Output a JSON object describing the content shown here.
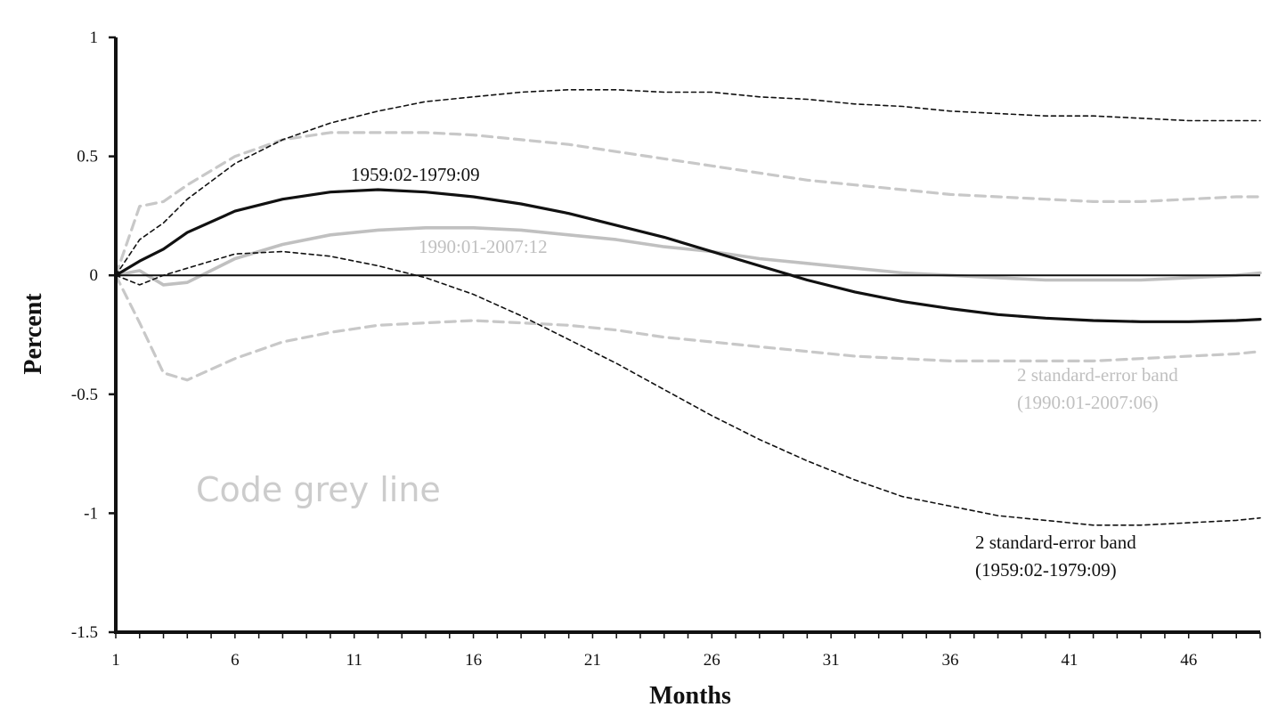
{
  "chart_data": {
    "type": "line",
    "title": "",
    "xlabel": "Months",
    "ylabel": "Percent",
    "xlim": [
      1,
      49
    ],
    "ylim": [
      -1.5,
      1
    ],
    "x_ticks": [
      1,
      6,
      11,
      16,
      21,
      26,
      31,
      36,
      41,
      46
    ],
    "y_ticks": [
      1,
      0.5,
      0,
      -0.5,
      -1,
      -1.5
    ],
    "y_tick_labels": [
      "1",
      "0.5",
      "0",
      "-0.5",
      "-1",
      "-1.5"
    ],
    "grid": false,
    "zero_line": true,
    "series": [
      {
        "name": "1959:02-1979:09",
        "style": "solid-black-thick",
        "color": "#111111",
        "x": [
          1,
          2,
          3,
          4,
          6,
          8,
          10,
          12,
          14,
          16,
          18,
          20,
          22,
          24,
          26,
          28,
          30,
          32,
          34,
          36,
          38,
          40,
          42,
          44,
          46,
          48,
          49
        ],
        "y": [
          0,
          0.06,
          0.11,
          0.18,
          0.27,
          0.32,
          0.35,
          0.36,
          0.35,
          0.33,
          0.3,
          0.26,
          0.21,
          0.16,
          0.1,
          0.04,
          -0.02,
          -0.07,
          -0.11,
          -0.14,
          -0.165,
          -0.18,
          -0.19,
          -0.195,
          -0.195,
          -0.19,
          -0.185
        ]
      },
      {
        "name": "1990:01-2007:12",
        "style": "solid-grey-thick",
        "color": "#c0c0c0",
        "x": [
          1,
          2,
          3,
          4,
          6,
          8,
          10,
          12,
          14,
          16,
          18,
          20,
          22,
          24,
          26,
          28,
          30,
          32,
          34,
          36,
          38,
          40,
          42,
          44,
          46,
          48,
          49
        ],
        "y": [
          0,
          0.02,
          -0.04,
          -0.03,
          0.07,
          0.13,
          0.17,
          0.19,
          0.2,
          0.2,
          0.19,
          0.17,
          0.15,
          0.12,
          0.1,
          0.07,
          0.05,
          0.03,
          0.01,
          0,
          -0.01,
          -0.02,
          -0.02,
          -0.02,
          -0.01,
          0,
          0.01
        ]
      },
      {
        "name": "2 standard-error band (1959:02-1979:09) upper",
        "style": "dashed-black-thin",
        "color": "#111111",
        "x": [
          1,
          2,
          3,
          4,
          6,
          8,
          10,
          12,
          14,
          16,
          18,
          20,
          22,
          24,
          26,
          28,
          30,
          32,
          34,
          36,
          38,
          40,
          42,
          44,
          46,
          48,
          49
        ],
        "y": [
          0,
          0.15,
          0.22,
          0.32,
          0.47,
          0.57,
          0.64,
          0.69,
          0.73,
          0.75,
          0.77,
          0.78,
          0.78,
          0.77,
          0.77,
          0.75,
          0.74,
          0.72,
          0.71,
          0.69,
          0.68,
          0.67,
          0.67,
          0.66,
          0.65,
          0.65,
          0.65
        ]
      },
      {
        "name": "2 standard-error band (1959:02-1979:09) lower",
        "style": "dashed-black-thin",
        "color": "#111111",
        "x": [
          1,
          2,
          3,
          4,
          6,
          8,
          10,
          12,
          14,
          16,
          18,
          20,
          22,
          24,
          26,
          28,
          30,
          32,
          34,
          36,
          38,
          40,
          42,
          44,
          46,
          48,
          49
        ],
        "y": [
          0,
          -0.04,
          0,
          0.03,
          0.09,
          0.1,
          0.08,
          0.04,
          -0.01,
          -0.08,
          -0.17,
          -0.27,
          -0.37,
          -0.48,
          -0.59,
          -0.69,
          -0.78,
          -0.86,
          -0.93,
          -0.97,
          -1.01,
          -1.03,
          -1.05,
          -1.05,
          -1.04,
          -1.03,
          -1.02
        ]
      },
      {
        "name": "2 standard-error band (1990:01-2007:06) upper",
        "style": "dashed-grey-thick",
        "color": "#c8c8c8",
        "x": [
          1,
          2,
          3,
          4,
          6,
          8,
          10,
          12,
          14,
          16,
          18,
          20,
          22,
          24,
          26,
          28,
          30,
          32,
          34,
          36,
          38,
          40,
          42,
          44,
          46,
          48,
          49
        ],
        "y": [
          0,
          0.29,
          0.31,
          0.38,
          0.5,
          0.57,
          0.6,
          0.6,
          0.6,
          0.59,
          0.57,
          0.55,
          0.52,
          0.49,
          0.46,
          0.43,
          0.4,
          0.38,
          0.36,
          0.34,
          0.33,
          0.32,
          0.31,
          0.31,
          0.32,
          0.33,
          0.33
        ]
      },
      {
        "name": "2 standard-error band (1990:01-2007:06) lower",
        "style": "dashed-grey-thick",
        "color": "#c8c8c8",
        "x": [
          1,
          2,
          3,
          4,
          6,
          8,
          10,
          12,
          14,
          16,
          18,
          20,
          22,
          24,
          26,
          28,
          30,
          32,
          34,
          36,
          38,
          40,
          42,
          44,
          46,
          48,
          49
        ],
        "y": [
          0,
          -0.2,
          -0.41,
          -0.44,
          -0.35,
          -0.28,
          -0.24,
          -0.21,
          -0.2,
          -0.19,
          -0.2,
          -0.21,
          -0.23,
          -0.26,
          -0.28,
          -0.3,
          -0.32,
          -0.34,
          -0.35,
          -0.36,
          -0.36,
          -0.36,
          -0.36,
          -0.35,
          -0.34,
          -0.33,
          -0.32
        ]
      }
    ],
    "annotations": [
      {
        "name": "label-black-line",
        "text": "1959:02-1979:09",
        "color": "#111111"
      },
      {
        "name": "label-grey-line",
        "text": "1990:01-2007:12",
        "color": "#c0c0c0"
      },
      {
        "name": "label-grey-band-line1",
        "text": "2 standard-error band",
        "color": "#c0c0c0"
      },
      {
        "name": "label-grey-band-line2",
        "text": "(1990:01-2007:06)",
        "color": "#c0c0c0"
      },
      {
        "name": "label-black-band-line1",
        "text": "2 standard-error band",
        "color": "#111111"
      },
      {
        "name": "label-black-band-line2",
        "text": "(1959:02-1979:09)",
        "color": "#111111"
      }
    ],
    "watermark": {
      "text": "Code grey line",
      "color": "#cccccc"
    }
  }
}
